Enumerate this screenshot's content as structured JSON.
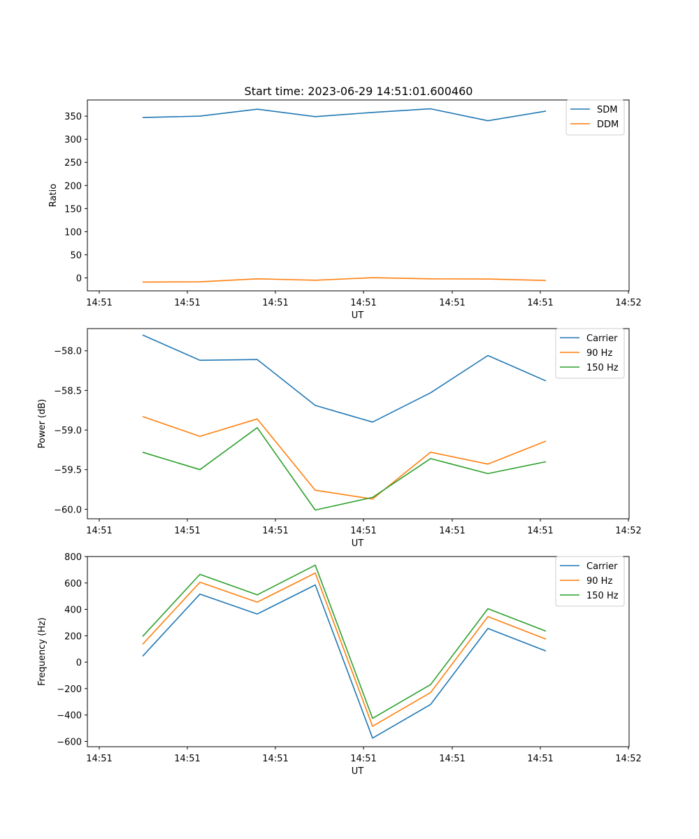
{
  "figure_title": "Start time: 2023-06-29 14:51:01.600460",
  "colors": {
    "series1": "#1f77b4",
    "series2": "#ff7f0e",
    "series3": "#2ca02c"
  },
  "chart_data": [
    {
      "type": "line",
      "title": "Start time: 2023-06-29 14:51:01.600460",
      "xlabel": "UT",
      "ylabel": "Ratio",
      "x_tick_labels": [
        "14:51",
        "14:51",
        "14:51",
        "14:51",
        "14:51",
        "14:51",
        "14:52"
      ],
      "y_ticks": [
        0,
        50,
        100,
        150,
        200,
        250,
        300,
        350
      ],
      "y_tick_labels": [
        "0",
        "50",
        "100",
        "150",
        "200",
        "250",
        "300",
        "350"
      ],
      "ylim": [
        -28,
        385
      ],
      "legend_position": "top-right",
      "grid": false,
      "series": [
        {
          "name": "SDM",
          "values": [
            347,
            350,
            365,
            349,
            358,
            366,
            340,
            361
          ]
        },
        {
          "name": "DDM",
          "values": [
            -9,
            -8.5,
            -2,
            -5,
            0.5,
            -2,
            -2.5,
            -5.5
          ]
        }
      ]
    },
    {
      "type": "line",
      "title": "",
      "xlabel": "UT",
      "ylabel": "Power (dB)",
      "x_tick_labels": [
        "14:51",
        "14:51",
        "14:51",
        "14:51",
        "14:51",
        "14:51",
        "14:52"
      ],
      "y_ticks": [
        -58.0,
        -58.5,
        -59.0,
        -59.5,
        -60.0
      ],
      "y_tick_labels": [
        "−58.0",
        "−58.5",
        "−59.0",
        "−59.5",
        "−60.0"
      ],
      "ylim": [
        -60.12,
        -57.72
      ],
      "legend_position": "top-right",
      "grid": false,
      "series": [
        {
          "name": "Carrier",
          "values": [
            -57.8,
            -58.12,
            -58.11,
            -58.69,
            -58.9,
            -58.53,
            -58.06,
            -58.38
          ]
        },
        {
          "name": "90 Hz",
          "values": [
            -58.83,
            -59.08,
            -58.86,
            -59.76,
            -59.87,
            -59.28,
            -59.43,
            -59.14
          ]
        },
        {
          "name": "150 Hz",
          "values": [
            -59.28,
            -59.5,
            -58.97,
            -60.01,
            -59.85,
            -59.36,
            -59.55,
            -59.4
          ]
        }
      ]
    },
    {
      "type": "line",
      "title": "",
      "xlabel": "UT",
      "ylabel": "Frequency (Hz)",
      "x_tick_labels": [
        "14:51",
        "14:51",
        "14:51",
        "14:51",
        "14:51",
        "14:51",
        "14:52"
      ],
      "y_ticks": [
        -600,
        -400,
        -200,
        0,
        200,
        400,
        600,
        800
      ],
      "y_tick_labels": [
        "−600",
        "−400",
        "−200",
        "0",
        "200",
        "400",
        "600",
        "800"
      ],
      "ylim": [
        -640,
        800
      ],
      "legend_position": "top-right",
      "grid": false,
      "series": [
        {
          "name": "Carrier",
          "values": [
            45,
            515,
            365,
            585,
            -575,
            -320,
            255,
            85
          ]
        },
        {
          "name": "90 Hz",
          "values": [
            135,
            605,
            455,
            675,
            -485,
            -230,
            345,
            175
          ]
        },
        {
          "name": "150 Hz",
          "values": [
            195,
            665,
            510,
            735,
            -425,
            -170,
            405,
            235
          ]
        }
      ]
    }
  ]
}
